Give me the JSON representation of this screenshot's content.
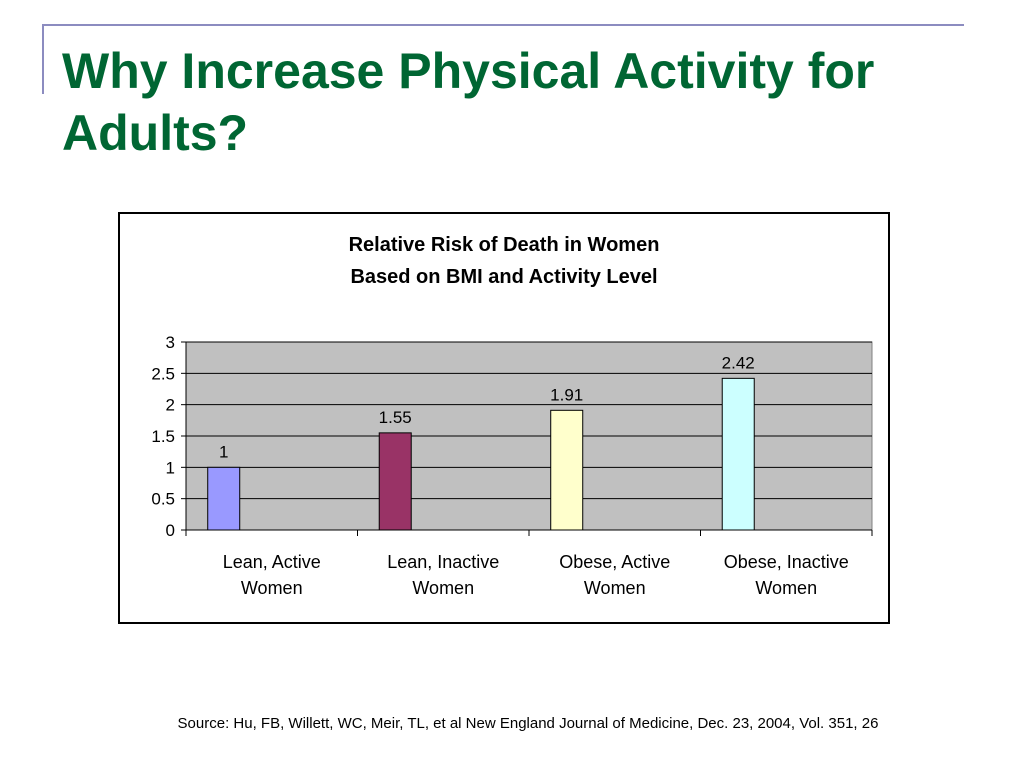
{
  "slide": {
    "title": "Why Increase Physical Activity for Adults?",
    "source": "Source: Hu, FB, Willett, WC, Meir, TL, et al New England Journal of Medicine, Dec. 23, 2004, Vol. 351, 26"
  },
  "colors": {
    "title": "#006633",
    "accent_rule": "#8c8cc0",
    "plot_background": "#c0c0c0"
  },
  "chart_data": {
    "type": "bar",
    "title": [
      "Relative Risk of Death in Women",
      "Based on BMI and Activity Level"
    ],
    "categories": [
      [
        "Lean, Active",
        "Women"
      ],
      [
        "Lean, Inactive",
        "Women"
      ],
      [
        "Obese, Active",
        "Women"
      ],
      [
        "Obese, Inactive",
        "Women"
      ]
    ],
    "values": [
      1,
      1.55,
      1.91,
      2.42
    ],
    "data_labels": [
      "1",
      "1.55",
      "1.91",
      "2.42"
    ],
    "bar_colors": [
      "#9999ff",
      "#993366",
      "#ffffcc",
      "#ccffff"
    ],
    "ylim": [
      0,
      3
    ],
    "yticks": [
      "0",
      "0.5",
      "1",
      "1.5",
      "2",
      "2.5",
      "3"
    ],
    "xlabel": "",
    "ylabel": "",
    "grid": true,
    "legend": false
  }
}
